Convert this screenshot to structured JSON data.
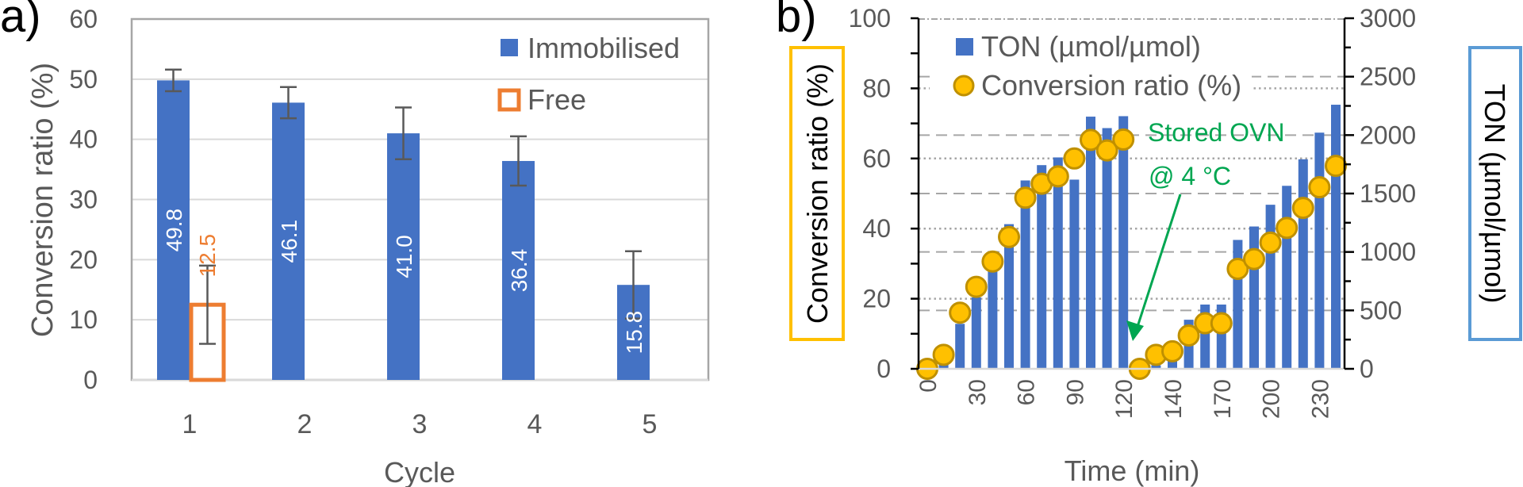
{
  "chart_data": [
    {
      "panel_label": "a)",
      "type": "bar",
      "title": "",
      "xlabel": "Cycle",
      "ylabel": "Conversion ratio (%)",
      "ylim": [
        0,
        60
      ],
      "yticks": [
        0,
        10,
        20,
        30,
        40,
        50,
        60
      ],
      "categories": [
        "1",
        "2",
        "3",
        "4",
        "5"
      ],
      "grid": true,
      "legend_position": "top-right",
      "series": [
        {
          "name": "Immobilised",
          "color": "#4472C4",
          "style": "filled",
          "values": [
            49.8,
            46.1,
            41.0,
            36.4,
            15.8
          ],
          "errors": [
            1.8,
            2.6,
            4.3,
            4.1,
            5.6
          ],
          "labels": [
            "49.8",
            "46.1",
            "41.0",
            "36.4",
            "15.8"
          ]
        },
        {
          "name": "Free",
          "color": "#ED7D31",
          "style": "outline",
          "values": [
            12.5,
            null,
            null,
            null,
            null
          ],
          "errors": [
            6.5,
            null,
            null,
            null,
            null
          ],
          "labels": [
            "12.5",
            null,
            null,
            null,
            null
          ]
        }
      ]
    },
    {
      "panel_label": "b)",
      "type": "bar+scatter",
      "xlabel": "Time (min)",
      "ylabel_left": "Conversion ratio (%)",
      "ylabel_right": "TON (µmol/µmol)",
      "ylim_left": [
        0,
        100
      ],
      "ylim_right": [
        0,
        3000
      ],
      "yticks_left": [
        0,
        20,
        40,
        60,
        80,
        100
      ],
      "yticks_right": [
        0,
        500,
        1000,
        1500,
        2000,
        2500,
        3000
      ],
      "x": [
        0,
        10,
        20,
        30,
        40,
        50,
        60,
        70,
        80,
        90,
        100,
        110,
        120,
        120,
        130,
        140,
        150,
        160,
        170,
        180,
        190,
        200,
        210,
        220,
        230,
        240
      ],
      "xtick_labels": [
        "0",
        "30",
        "60",
        "90",
        "120",
        "140",
        "170",
        "200",
        "230"
      ],
      "legend_position": "top-left",
      "series": [
        {
          "name": "TON (µmol/µmol)",
          "type": "bar",
          "axis": "right",
          "color": "#4472C4",
          "values": [
            0,
            90,
            385,
            611,
            1008,
            1238,
            1612,
            1743,
            1809,
            1619,
            2158,
            2060,
            2162,
            0,
            30,
            100,
            420,
            550,
            550,
            1103,
            1218,
            1404,
            1566,
            1793,
            2021,
            2260
          ]
        },
        {
          "name": "Conversion ratio (%)",
          "type": "scatter",
          "axis": "left",
          "color": "#FFC000",
          "values": [
            0,
            4,
            16,
            23.4,
            30.6,
            37.6,
            48.8,
            52.8,
            54.9,
            60,
            65.3,
            62.3,
            65.4,
            0,
            4,
            5,
            9.5,
            13,
            13,
            28.5,
            31.3,
            36,
            40.2,
            45.9,
            51.8,
            57.9
          ]
        }
      ],
      "annotation": {
        "lines": [
          "Stored OVN",
          "@ 4 °C"
        ],
        "color": "#00A651"
      }
    }
  ]
}
